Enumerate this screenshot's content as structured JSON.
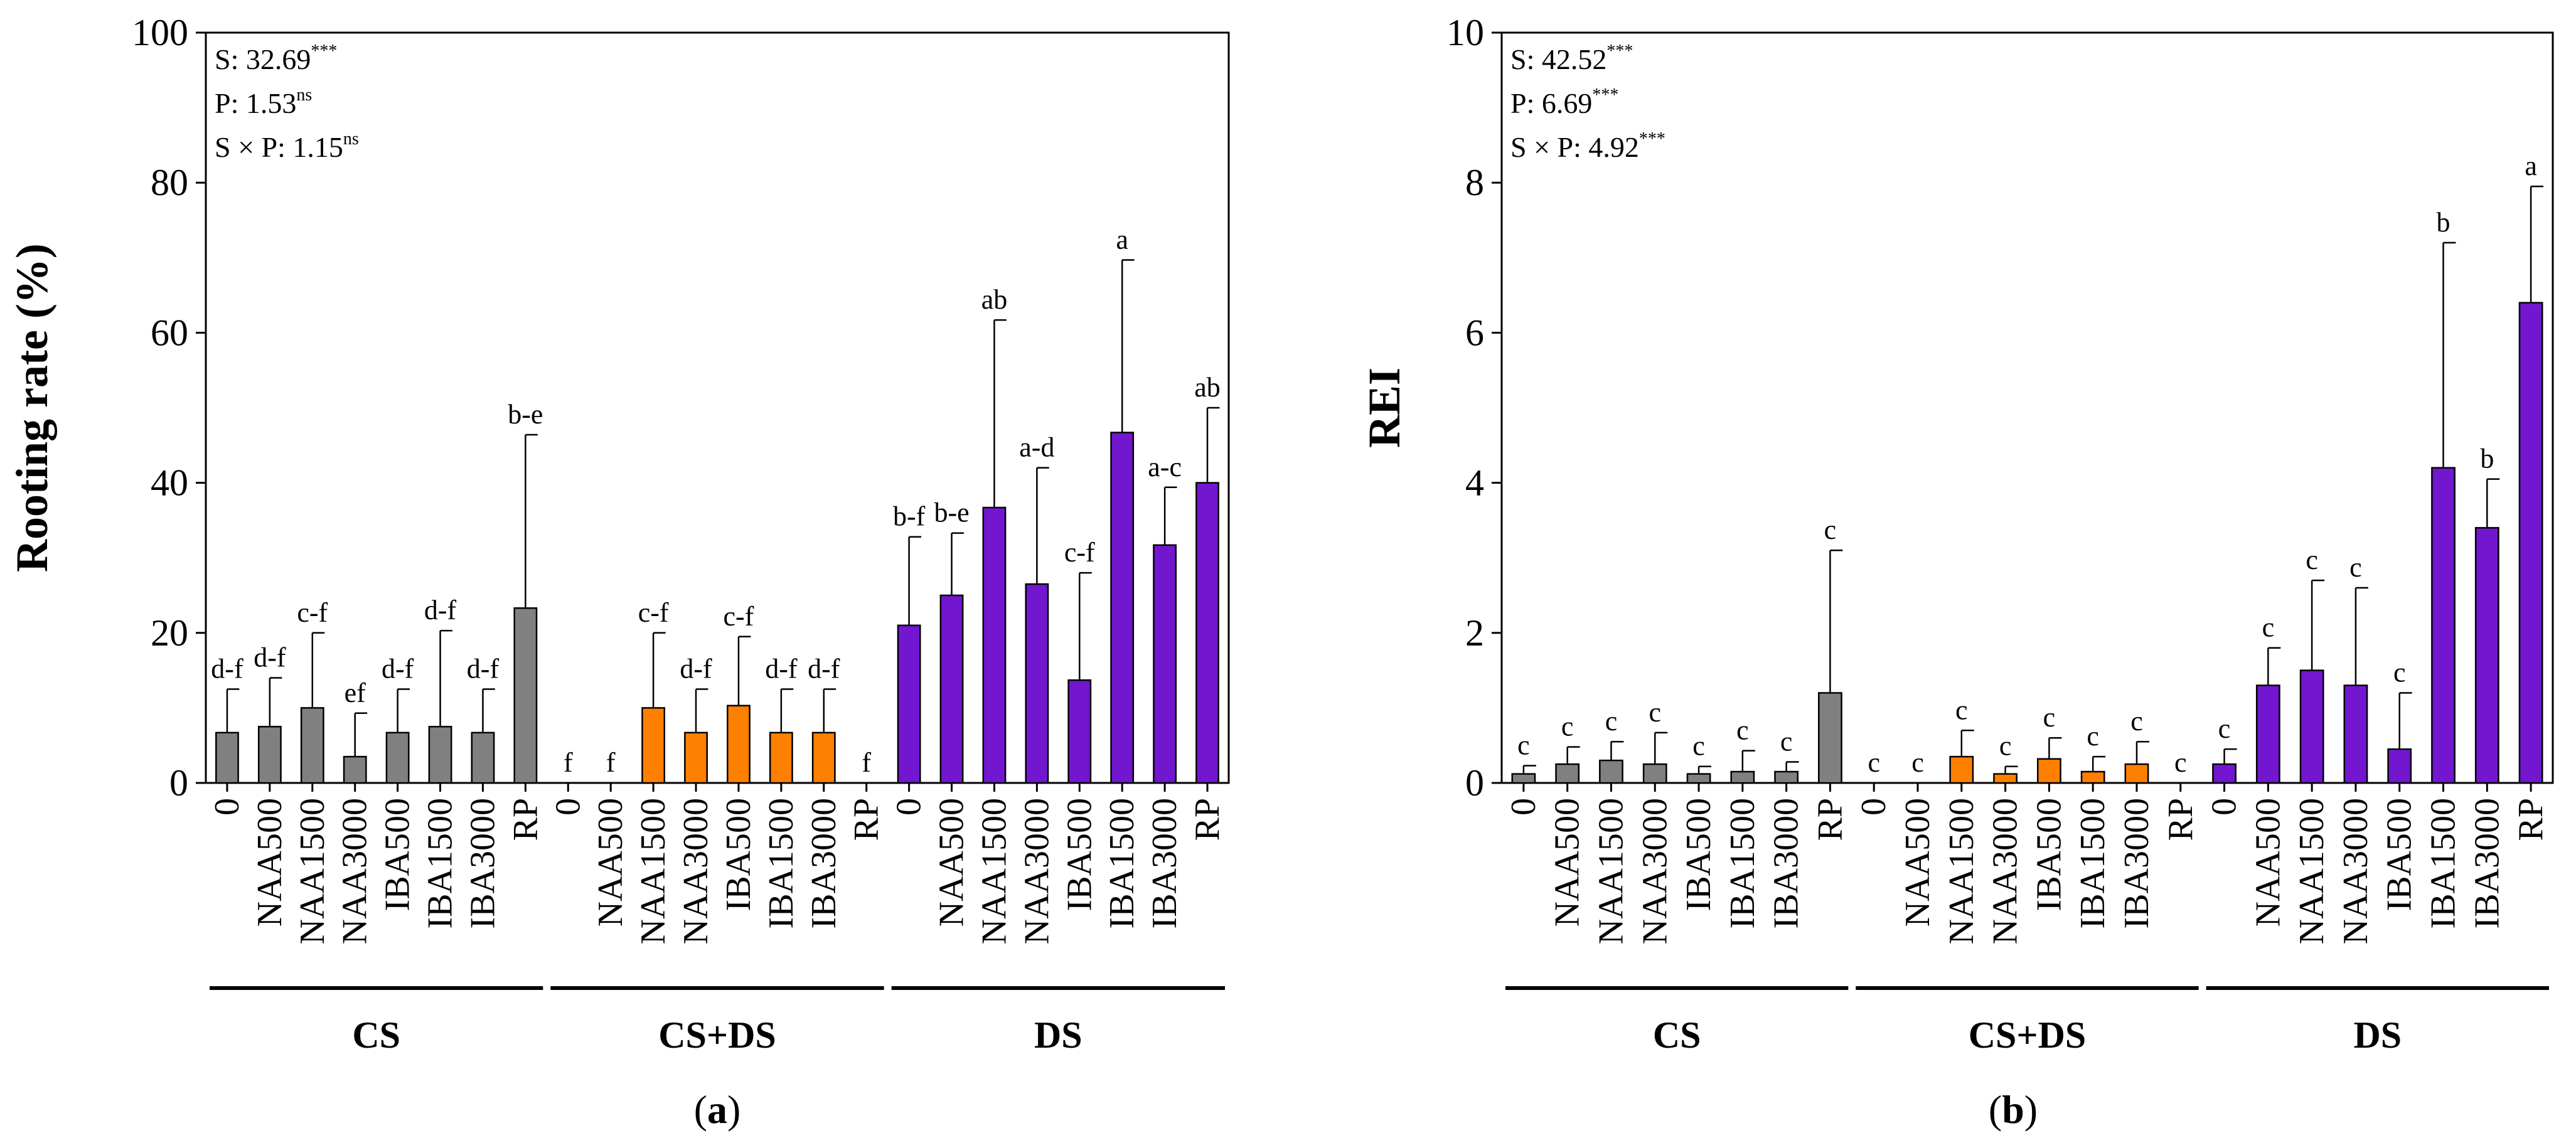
{
  "chart_data": [
    {
      "panel_label": "(a)",
      "type": "bar",
      "ylabel": "Rooting rate (%)",
      "ylim": [
        0,
        100
      ],
      "yticks": [
        0,
        20,
        40,
        60,
        80,
        100
      ],
      "stats": [
        {
          "text": "S: 32.69",
          "sup": "***"
        },
        {
          "text": "P: 1.53",
          "sup": "ns"
        },
        {
          "text": "S × P: 1.15",
          "sup": "ns"
        }
      ],
      "groups": [
        {
          "name": "CS",
          "color": "#808080",
          "categories": [
            "0",
            "NAA500",
            "NAA1500",
            "NAA3000",
            "IBA500",
            "IBA1500",
            "IBA3000",
            "RP"
          ],
          "values": [
            6.7,
            7.5,
            10,
            3.5,
            6.7,
            7.5,
            6.7,
            23.3
          ],
          "errors": [
            5.8,
            6.5,
            10,
            5.8,
            5.8,
            12.8,
            5.8,
            23.1
          ],
          "letters": [
            "d-f",
            "d-f",
            "c-f",
            "ef",
            "d-f",
            "d-f",
            "d-f",
            "b-e"
          ]
        },
        {
          "name": "CS+DS",
          "color": "#ff8000",
          "categories": [
            "0",
            "NAA500",
            "NAA1500",
            "NAA3000",
            "IBA500",
            "IBA1500",
            "IBA3000",
            "RP"
          ],
          "values": [
            0,
            0,
            10,
            6.7,
            10.3,
            6.7,
            6.7,
            0
          ],
          "errors": [
            0,
            0,
            10,
            5.8,
            9.2,
            5.8,
            5.8,
            0
          ],
          "letters": [
            "f",
            "f",
            "c-f",
            "d-f",
            "c-f",
            "d-f",
            "d-f",
            "f"
          ]
        },
        {
          "name": "DS",
          "color": "#7216d0",
          "categories": [
            "0",
            "NAA500",
            "NAA1500",
            "NAA3000",
            "IBA500",
            "IBA1500",
            "IBA3000",
            "RP"
          ],
          "values": [
            21,
            25,
            36.7,
            26.5,
            13.7,
            46.7,
            31.7,
            40
          ],
          "errors": [
            11.8,
            8.3,
            25,
            15.5,
            14.3,
            23,
            7.7,
            10
          ],
          "letters": [
            "b-f",
            "b-e",
            "ab",
            "a-d",
            "c-f",
            "a",
            "a-c",
            "ab"
          ]
        }
      ]
    },
    {
      "panel_label": "(b)",
      "type": "bar",
      "ylabel": "REI",
      "ylim": [
        0,
        10
      ],
      "yticks": [
        0,
        2,
        4,
        6,
        8,
        10
      ],
      "stats": [
        {
          "text": "S: 42.52",
          "sup": "***"
        },
        {
          "text": "P: 6.69",
          "sup": "***"
        },
        {
          "text": "S × P: 4.92",
          "sup": "***"
        }
      ],
      "groups": [
        {
          "name": "CS",
          "color": "#808080",
          "categories": [
            "0",
            "NAA500",
            "NAA1500",
            "NAA3000",
            "IBA500",
            "IBA1500",
            "IBA3000",
            "RP"
          ],
          "values": [
            0.12,
            0.25,
            0.3,
            0.25,
            0.12,
            0.15,
            0.15,
            1.2
          ],
          "errors": [
            0.11,
            0.23,
            0.25,
            0.42,
            0.1,
            0.28,
            0.13,
            1.9
          ],
          "letters": [
            "c",
            "c",
            "c",
            "c",
            "c",
            "c",
            "c",
            "c"
          ]
        },
        {
          "name": "CS+DS",
          "color": "#ff8000",
          "categories": [
            "0",
            "NAA500",
            "NAA1500",
            "NAA3000",
            "IBA500",
            "IBA1500",
            "IBA3000",
            "RP"
          ],
          "values": [
            0,
            0,
            0.35,
            0.12,
            0.32,
            0.15,
            0.25,
            0
          ],
          "errors": [
            0,
            0,
            0.35,
            0.1,
            0.28,
            0.2,
            0.3,
            0
          ],
          "letters": [
            "c",
            "c",
            "c",
            "c",
            "c",
            "c",
            "c",
            "c"
          ]
        },
        {
          "name": "DS",
          "color": "#7216d0",
          "categories": [
            "0",
            "NAA500",
            "NAA1500",
            "NAA3000",
            "IBA500",
            "IBA1500",
            "IBA3000",
            "RP"
          ],
          "values": [
            0.25,
            1.3,
            1.5,
            1.3,
            0.45,
            4.2,
            3.4,
            6.4
          ],
          "errors": [
            0.2,
            0.5,
            1.2,
            1.3,
            0.75,
            3.0,
            0.65,
            1.55
          ],
          "letters": [
            "c",
            "c",
            "c",
            "c",
            "c",
            "b",
            "b",
            "a"
          ]
        }
      ]
    }
  ]
}
